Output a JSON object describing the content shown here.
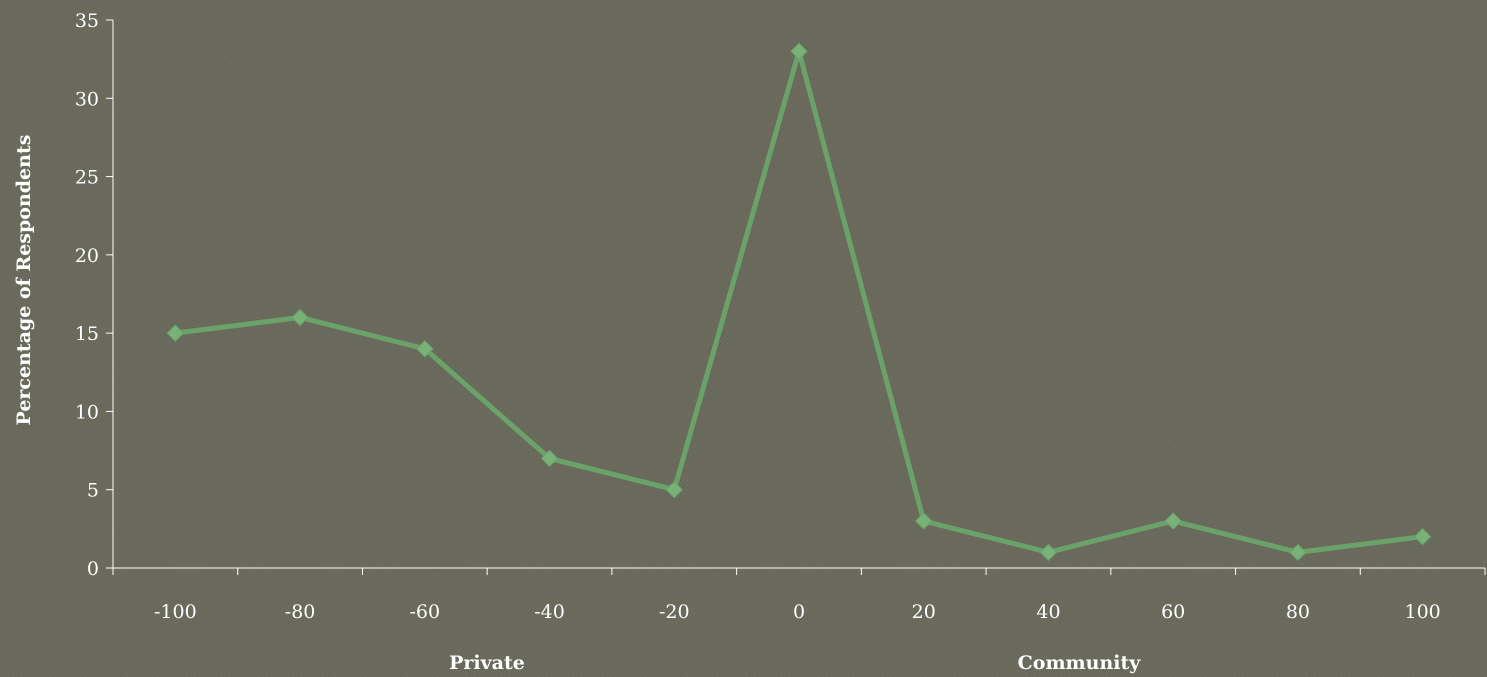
{
  "chart_data": {
    "type": "line",
    "ylabel": "Percentage of Respondents",
    "x_group_labels": [
      "Private",
      "Community"
    ],
    "x": [
      -100,
      -80,
      -60,
      -40,
      -20,
      0,
      20,
      40,
      60,
      80,
      100
    ],
    "x_tick_labels": [
      "-100",
      "-80",
      "-60",
      "-40",
      "-20",
      "0",
      "20",
      "40",
      "60",
      "80",
      "100"
    ],
    "series": [
      {
        "values": [
          15,
          16,
          14,
          7,
          5,
          33,
          3,
          1,
          3,
          1,
          2
        ]
      }
    ],
    "ylim": [
      0,
      35
    ],
    "y_ticks": [
      0,
      5,
      10,
      15,
      20,
      25,
      30,
      35
    ],
    "grid": false,
    "colors": {
      "line": "#6aa36a",
      "marker": "#79b279",
      "axis": "#ffffff",
      "background": "#6a6a5c"
    }
  }
}
